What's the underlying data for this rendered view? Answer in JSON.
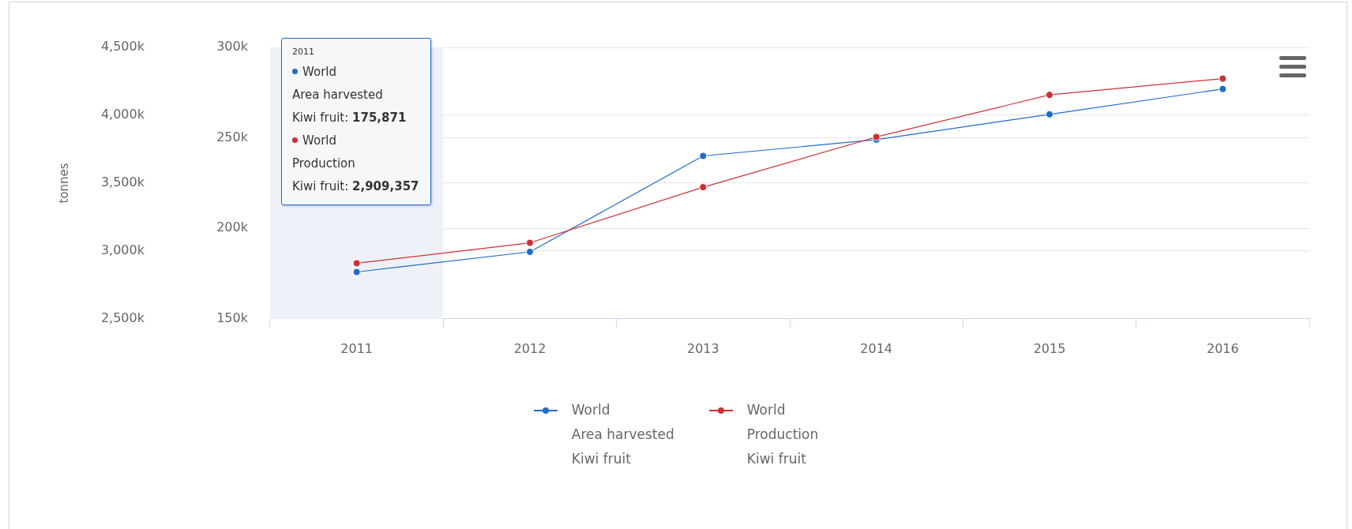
{
  "chart_data": {
    "type": "line",
    "categories": [
      "2011",
      "2012",
      "2013",
      "2014",
      "2015",
      "2016"
    ],
    "series": [
      {
        "name": "World\nArea harvested\nKiwi fruit",
        "color": "#1f6cc8",
        "axis": "y2",
        "values": [
          175871,
          187000,
          240000,
          249000,
          263000,
          277000
        ]
      },
      {
        "name": "World\nProduction\nKiwi fruit",
        "color": "#cf2e36",
        "values": [
          2909357,
          3060000,
          3470000,
          3840000,
          4150000,
          4270000
        ]
      }
    ],
    "ylabel": "tonnes",
    "ylim": [
      2500000,
      4500000
    ],
    "yticks": [
      {
        "value": 2500000,
        "label": "2,500k"
      },
      {
        "value": 3000000,
        "label": "3,000k"
      },
      {
        "value": 3500000,
        "label": "3,500k"
      },
      {
        "value": 4000000,
        "label": "4,000k"
      },
      {
        "value": 4500000,
        "label": "4,500k"
      }
    ],
    "y2lim": [
      150000,
      300000
    ],
    "y2ticks": [
      {
        "value": 150000,
        "label": "150k"
      },
      {
        "value": 200000,
        "label": "200k"
      },
      {
        "value": 250000,
        "label": "250k"
      },
      {
        "value": 300000,
        "label": "300k"
      }
    ],
    "grid": "y",
    "legend": "bottom",
    "marker": "circle",
    "line_style": "solid",
    "bands": [
      {
        "axis": "x",
        "from": "2011",
        "to": "2011",
        "color": "#eef2f8"
      }
    ],
    "annotations": [
      "2011",
      "World",
      "Area harvested",
      "Kiwi fruit: 175,871",
      "World",
      "Production",
      "Kiwi fruit: 2,909,357"
    ]
  }
}
